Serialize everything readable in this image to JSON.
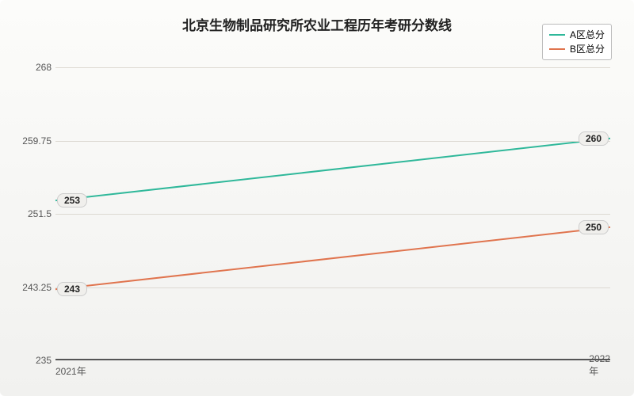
{
  "chart": {
    "type": "line",
    "title": "北京生物制品研究所农业工程历年考研分数线",
    "title_fontsize": 17,
    "background_gradient": [
      "#fcfcfa",
      "#f1f1ef"
    ],
    "grid_color": "#ddd9d2",
    "axis_color": "#555555",
    "ylim": [
      235,
      268
    ],
    "yticks": [
      235,
      243.25,
      251.5,
      259.75,
      268
    ],
    "ytick_labels": [
      "235",
      "243.25",
      "251.5",
      "259.75",
      "268"
    ],
    "categories": [
      "2021年",
      "2022年"
    ],
    "series": [
      {
        "name": "A区总分",
        "color": "#2fb89a",
        "line_width": 2,
        "values": [
          253,
          260
        ],
        "value_labels": [
          "253",
          "260"
        ]
      },
      {
        "name": "B区总分",
        "color": "#e0744e",
        "line_width": 2,
        "values": [
          243,
          250
        ],
        "value_labels": [
          "243",
          "250"
        ]
      }
    ],
    "label_fontsize": 12,
    "point_label_bg": "#f0efec",
    "point_label_border": "#cccccc"
  }
}
